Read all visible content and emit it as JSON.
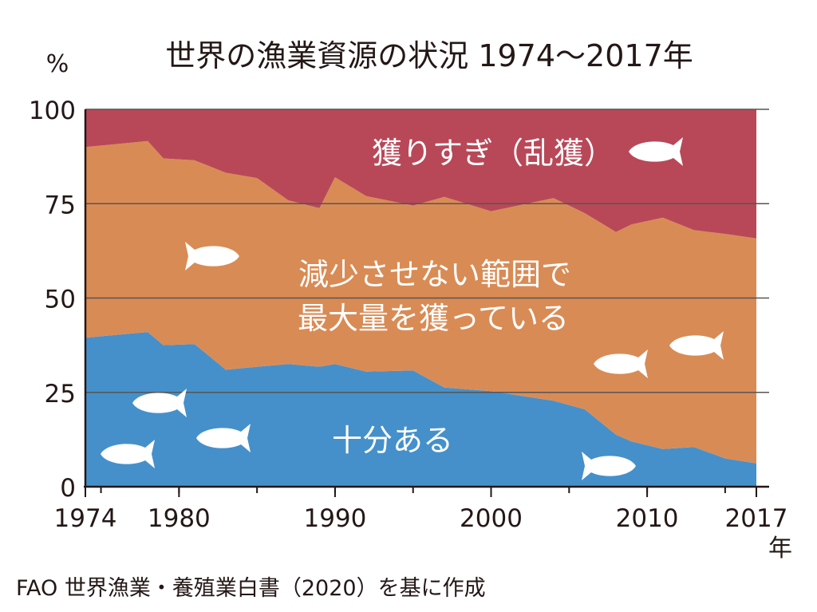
{
  "chart_data": {
    "type": "area",
    "stacked": true,
    "title": "世界の漁業資源の状況 1974〜2017年",
    "ylabel": "%",
    "xlabel": "年",
    "source": "FAO 世界漁業・養殖業白書（2020）を基に作成",
    "ylim": [
      0,
      100
    ],
    "xlim": [
      1974,
      2017
    ],
    "y_ticks": [
      "0",
      "25",
      "50",
      "75",
      "100"
    ],
    "x_tick_labels": [
      "1974",
      "1980",
      "1990",
      "2000",
      "2010",
      "2017"
    ],
    "x_tick_values": [
      1974,
      1980,
      1990,
      2000,
      2010,
      2017
    ],
    "x": [
      1974,
      1978,
      1979,
      1981,
      1983,
      1985,
      1987,
      1989,
      1990,
      1992,
      1995,
      1997,
      2000,
      2004,
      2006,
      2008,
      2009,
      2011,
      2013,
      2015,
      2017
    ],
    "series": [
      {
        "name": "十分ある",
        "color": "#4590ca",
        "values": [
          39.5,
          41.0,
          37.5,
          37.8,
          31.0,
          31.8,
          32.5,
          31.8,
          32.5,
          30.5,
          30.8,
          26.3,
          25.3,
          22.8,
          20.5,
          13.8,
          12.0,
          10.0,
          10.5,
          7.5,
          6.2
        ]
      },
      {
        "name": "減少させない範囲で最大量を獲っている",
        "color": "#d98b55",
        "values": [
          50.5,
          50.6,
          49.5,
          48.7,
          52.2,
          50.0,
          43.4,
          42.0,
          49.5,
          46.5,
          43.7,
          50.5,
          47.7,
          53.7,
          52.0,
          53.7,
          57.5,
          61.3,
          57.5,
          59.5,
          59.6
        ]
      },
      {
        "name": "獲りすぎ（乱獲）",
        "color": "#b84858",
        "values": [
          10.0,
          8.4,
          13.0,
          13.5,
          16.8,
          18.2,
          24.1,
          26.2,
          18.0,
          23.0,
          25.5,
          23.2,
          27.0,
          23.5,
          27.5,
          32.5,
          30.5,
          28.7,
          32.0,
          33.0,
          34.2
        ]
      }
    ],
    "labels": {
      "overfished": "獲りすぎ（乱獲）",
      "max_line1": "減少させない範囲で",
      "max_line2": "最大量を獲っている",
      "under": "十分ある"
    },
    "grid": true,
    "grid_color": "#555555",
    "label_color": "#ffffff"
  }
}
